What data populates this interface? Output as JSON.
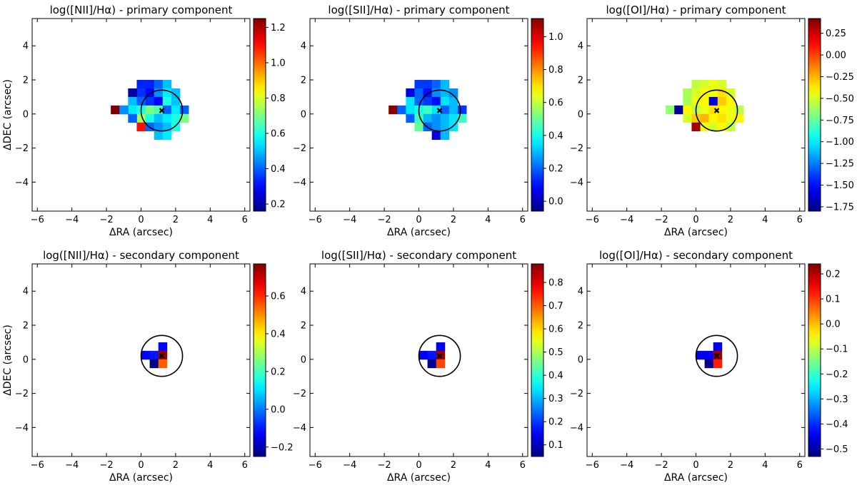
{
  "figure": {
    "colormap": "jet",
    "background": "#ffffff"
  },
  "chart_data": [
    {
      "type": "heatmap",
      "title": "log([NII]/Hα) - primary component",
      "xlabel": "ΔRA (arcsec)",
      "ylabel": "ΔDEC (arcsec)",
      "xlim": [
        -6.3,
        6.3
      ],
      "ylim": [
        -5.7,
        5.6
      ],
      "xticks": [
        -6,
        -4,
        -2,
        0,
        2,
        4,
        6
      ],
      "yticks": [
        -4,
        -2,
        0,
        2,
        4
      ],
      "clim": [
        0.16,
        1.25
      ],
      "cbar_ticks": [
        0.2,
        0.4,
        0.6,
        0.8,
        1.0,
        1.2
      ],
      "cbar_tick_labels": [
        "0.2",
        "0.4",
        "0.6",
        "0.8",
        "1.0",
        "1.2"
      ],
      "pixel_size": 0.5,
      "circle": {
        "cx": 1.2,
        "cy": 0.2,
        "r": 1.2
      },
      "marker": {
        "x": 1.2,
        "y": 0.2
      },
      "pixels": [
        [
          0,
          1.75,
          0.33
        ],
        [
          0.5,
          1.75,
          0.33
        ],
        [
          1,
          1.75,
          0.4
        ],
        [
          1.5,
          1.75,
          0.5
        ],
        [
          0,
          1.25,
          0.35
        ],
        [
          0.5,
          1.25,
          0.3
        ],
        [
          1,
          1.25,
          0.45
        ],
        [
          1.5,
          1.25,
          0.55
        ],
        [
          2,
          1.25,
          0.5
        ],
        [
          -0.5,
          1.25,
          0.2
        ],
        [
          -0.5,
          0.75,
          0.5
        ],
        [
          0,
          0.75,
          0.4
        ],
        [
          0.5,
          0.75,
          0.35
        ],
        [
          1,
          0.75,
          0.3
        ],
        [
          1.5,
          0.75,
          0.6
        ],
        [
          2,
          0.75,
          0.5
        ],
        [
          -1,
          0.25,
          0.45
        ],
        [
          -0.5,
          0.25,
          0.55
        ],
        [
          0,
          0.25,
          0.6
        ],
        [
          0.5,
          0.25,
          0.7
        ],
        [
          1,
          0.25,
          0.65
        ],
        [
          1.5,
          0.25,
          0.4
        ],
        [
          2,
          0.25,
          0.55
        ],
        [
          2.5,
          0.25,
          0.4
        ],
        [
          -1.5,
          0.25,
          1.25
        ],
        [
          -1.0,
          0.25,
          0.45
        ],
        [
          0,
          -0.25,
          0.75
        ],
        [
          0.5,
          -0.25,
          0.6
        ],
        [
          1,
          -0.25,
          0.5
        ],
        [
          1.5,
          -0.25,
          0.55
        ],
        [
          2,
          -0.25,
          0.6
        ],
        [
          2.5,
          -0.25,
          0.7
        ],
        [
          -0.5,
          -0.25,
          0.4
        ],
        [
          0,
          -0.75,
          1.1
        ],
        [
          0.5,
          -0.75,
          0.4
        ],
        [
          1,
          -0.75,
          0.45
        ],
        [
          1.5,
          -0.75,
          0.5
        ],
        [
          2,
          -0.75,
          0.6
        ],
        [
          1,
          -1.25,
          0.5
        ],
        [
          1.5,
          -1.25,
          0.55
        ]
      ]
    },
    {
      "type": "heatmap",
      "title": "log([SII]/Hα) - primary component",
      "xlabel": "ΔRA (arcsec)",
      "ylabel": "",
      "xlim": [
        -6.3,
        6.3
      ],
      "ylim": [
        -5.7,
        5.6
      ],
      "xticks": [
        -6,
        -4,
        -2,
        0,
        2,
        4,
        6
      ],
      "yticks": [
        -4,
        -2,
        0,
        2,
        4
      ],
      "clim": [
        -0.06,
        1.11
      ],
      "cbar_ticks": [
        0.0,
        0.2,
        0.4,
        0.6,
        0.8,
        1.0
      ],
      "cbar_tick_labels": [
        "0.0",
        "0.2",
        "0.4",
        "0.6",
        "0.8",
        "1.0"
      ],
      "pixel_size": 0.5,
      "circle": {
        "cx": 1.2,
        "cy": 0.2,
        "r": 1.2
      },
      "marker": {
        "x": 1.2,
        "y": 0.2
      },
      "pixels": [
        [
          0,
          1.75,
          0.15
        ],
        [
          0.5,
          1.75,
          0.15
        ],
        [
          1,
          1.75,
          0.2
        ],
        [
          1.5,
          1.75,
          0.3
        ],
        [
          -0.5,
          1.25,
          0.05
        ],
        [
          0,
          1.25,
          0.2
        ],
        [
          0.5,
          1.25,
          0.1
        ],
        [
          1,
          1.25,
          0.25
        ],
        [
          1.5,
          1.25,
          0.3
        ],
        [
          2,
          1.25,
          0.25
        ],
        [
          -0.5,
          0.75,
          0.35
        ],
        [
          0,
          0.75,
          0.2
        ],
        [
          0.5,
          0.75,
          0.15
        ],
        [
          1,
          0.75,
          0.1
        ],
        [
          1.5,
          0.75,
          0.35
        ],
        [
          2,
          0.75,
          0.3
        ],
        [
          -1.5,
          0.25,
          1.1
        ],
        [
          -1,
          0.25,
          0.2
        ],
        [
          -0.5,
          0.25,
          0.35
        ],
        [
          0,
          0.25,
          0.4
        ],
        [
          0.5,
          0.25,
          0.45
        ],
        [
          1,
          0.25,
          0.35
        ],
        [
          1.5,
          0.25,
          0.2
        ],
        [
          2,
          0.25,
          0.3
        ],
        [
          2.5,
          0.25,
          0.15
        ],
        [
          -0.5,
          -0.25,
          0.2
        ],
        [
          0,
          -0.25,
          0.45
        ],
        [
          0.5,
          -0.25,
          0.3
        ],
        [
          1,
          -0.25,
          0.25
        ],
        [
          1.5,
          -0.25,
          0.3
        ],
        [
          2,
          -0.25,
          0.35
        ],
        [
          2.5,
          -0.25,
          0.45
        ],
        [
          0,
          -0.75,
          0.5
        ],
        [
          0.5,
          -0.75,
          0.2
        ],
        [
          1,
          -0.75,
          0.25
        ],
        [
          1.5,
          -0.75,
          0.3
        ],
        [
          2,
          -0.75,
          0.35
        ],
        [
          1,
          -1.25,
          0.05
        ],
        [
          1.5,
          -1.25,
          0.3
        ]
      ]
    },
    {
      "type": "heatmap",
      "title": "log([OI]/Hα) - primary component",
      "xlabel": "ΔRA (arcsec)",
      "ylabel": "",
      "xlim": [
        -6.3,
        6.3
      ],
      "ylim": [
        -5.7,
        5.6
      ],
      "xticks": [
        -6,
        -4,
        -2,
        0,
        2,
        4,
        6
      ],
      "yticks": [
        -4,
        -2,
        0,
        2,
        4
      ],
      "clim": [
        -1.8,
        0.42
      ],
      "cbar_ticks": [
        -1.75,
        -1.5,
        -1.25,
        -1.0,
        -0.75,
        -0.5,
        -0.25,
        0.0,
        0.25
      ],
      "cbar_tick_labels": [
        "−1.75",
        "−1.50",
        "−1.25",
        "−1.00",
        "−0.75",
        "−0.50",
        "−0.25",
        "0.00",
        "0.25"
      ],
      "pixel_size": 0.5,
      "circle": {
        "cx": 1.2,
        "cy": 0.2,
        "r": 1.2
      },
      "marker": {
        "x": 1.2,
        "y": 0.2
      },
      "pixels": [
        [
          0,
          1.75,
          -0.55
        ],
        [
          0.5,
          1.75,
          -0.5
        ],
        [
          1,
          1.75,
          -0.45
        ],
        [
          1.5,
          1.75,
          -0.5
        ],
        [
          -0.5,
          1.25,
          -0.6
        ],
        [
          0,
          1.25,
          -0.5
        ],
        [
          0.5,
          1.25,
          -0.4
        ],
        [
          1,
          1.25,
          -0.45
        ],
        [
          1.5,
          1.25,
          -0.35
        ],
        [
          2,
          1.25,
          -0.5
        ],
        [
          -0.5,
          0.75,
          -0.6
        ],
        [
          0,
          0.75,
          -0.45
        ],
        [
          0.5,
          0.75,
          -0.4
        ],
        [
          1,
          0.75,
          -1.6
        ],
        [
          1.5,
          0.75,
          -0.3
        ],
        [
          2,
          0.75,
          -0.4
        ],
        [
          -1.5,
          0.25,
          -0.65
        ],
        [
          -1,
          0.25,
          -1.75
        ],
        [
          -0.5,
          0.25,
          -0.4
        ],
        [
          0,
          0.25,
          -0.55
        ],
        [
          0.5,
          0.25,
          -0.45
        ],
        [
          1,
          0.25,
          -0.35
        ],
        [
          1.5,
          0.25,
          -0.4
        ],
        [
          2,
          0.25,
          -0.45
        ],
        [
          2.5,
          0.25,
          -0.55
        ],
        [
          -0.5,
          -0.25,
          -0.5
        ],
        [
          0,
          -0.25,
          -0.3
        ],
        [
          0.5,
          -0.25,
          -0.25
        ],
        [
          1,
          -0.25,
          -0.4
        ],
        [
          1.5,
          -0.25,
          -0.35
        ],
        [
          2,
          -0.25,
          -0.45
        ],
        [
          2.5,
          -0.25,
          -0.4
        ],
        [
          0,
          -0.75,
          0.35
        ],
        [
          0.5,
          -0.75,
          -0.45
        ],
        [
          1,
          -0.75,
          -0.5
        ],
        [
          1.5,
          -0.75,
          -0.4
        ],
        [
          2,
          -0.75,
          -0.55
        ]
      ]
    },
    {
      "type": "heatmap",
      "title": "log([NII]/Hα) - secondary component",
      "xlabel": "ΔRA (arcsec)",
      "ylabel": "ΔDEC (arcsec)",
      "xlim": [
        -6.3,
        6.3
      ],
      "ylim": [
        -5.7,
        5.6
      ],
      "xticks": [
        -6,
        -4,
        -2,
        0,
        2,
        4,
        6
      ],
      "yticks": [
        -4,
        -2,
        0,
        2,
        4
      ],
      "clim": [
        -0.25,
        0.77
      ],
      "cbar_ticks": [
        -0.2,
        0.0,
        0.2,
        0.4,
        0.6
      ],
      "cbar_tick_labels": [
        "−0.2",
        "0.0",
        "0.2",
        "0.4",
        "0.6"
      ],
      "pixel_size": 0.5,
      "circle": {
        "cx": 1.2,
        "cy": 0.2,
        "r": 1.2
      },
      "marker": {
        "x": 1.2,
        "y": 0.2
      },
      "pixels": [
        [
          1.25,
          0.75,
          -0.12
        ],
        [
          0.25,
          0.25,
          -0.12
        ],
        [
          0.75,
          0.25,
          -0.1
        ],
        [
          1.25,
          0.25,
          0.75
        ],
        [
          0.75,
          -0.25,
          -0.25
        ],
        [
          1.25,
          -0.25,
          0.55
        ]
      ]
    },
    {
      "type": "heatmap",
      "title": "log([SII]/Hα) - secondary component",
      "xlabel": "ΔRA (arcsec)",
      "ylabel": "",
      "xlim": [
        -6.3,
        6.3
      ],
      "ylim": [
        -5.7,
        5.6
      ],
      "xticks": [
        -6,
        -4,
        -2,
        0,
        2,
        4,
        6
      ],
      "yticks": [
        -4,
        -2,
        0,
        2,
        4
      ],
      "clim": [
        0.05,
        0.88
      ],
      "cbar_ticks": [
        0.1,
        0.2,
        0.3,
        0.4,
        0.5,
        0.6,
        0.7,
        0.8
      ],
      "cbar_tick_labels": [
        "0.1",
        "0.2",
        "0.3",
        "0.4",
        "0.5",
        "0.6",
        "0.7",
        "0.8"
      ],
      "pixel_size": 0.5,
      "circle": {
        "cx": 1.2,
        "cy": 0.2,
        "r": 1.2
      },
      "marker": {
        "x": 1.2,
        "y": 0.2
      },
      "pixels": [
        [
          1.25,
          0.75,
          0.15
        ],
        [
          0.25,
          0.25,
          0.15
        ],
        [
          0.75,
          0.25,
          0.17
        ],
        [
          1.25,
          0.25,
          0.86
        ],
        [
          0.75,
          -0.25,
          0.06
        ],
        [
          1.25,
          -0.25,
          0.72
        ]
      ]
    },
    {
      "type": "heatmap",
      "title": "log([OI]/Hα) - secondary component",
      "xlabel": "ΔRA (arcsec)",
      "ylabel": "",
      "xlim": [
        -6.3,
        6.3
      ],
      "ylim": [
        -5.7,
        5.6
      ],
      "xticks": [
        -6,
        -4,
        -2,
        0,
        2,
        4,
        6
      ],
      "yticks": [
        -4,
        -2,
        0,
        2,
        4
      ],
      "clim": [
        -0.53,
        0.24
      ],
      "cbar_ticks": [
        -0.5,
        -0.4,
        -0.3,
        -0.2,
        -0.1,
        0.0,
        0.1,
        0.2
      ],
      "cbar_tick_labels": [
        "−0.5",
        "−0.4",
        "−0.3",
        "−0.2",
        "−0.1",
        "0.0",
        "0.1",
        "0.2"
      ],
      "pixel_size": 0.5,
      "circle": {
        "cx": 1.2,
        "cy": 0.2,
        "r": 1.2
      },
      "marker": {
        "x": 1.2,
        "y": 0.2
      },
      "pixels": [
        [
          1.25,
          0.75,
          -0.45
        ],
        [
          0.25,
          0.25,
          -0.45
        ],
        [
          0.75,
          0.25,
          -0.44
        ],
        [
          1.25,
          0.25,
          0.22
        ],
        [
          0.75,
          -0.25,
          -0.52
        ],
        [
          1.25,
          -0.25,
          0.12
        ]
      ]
    }
  ]
}
